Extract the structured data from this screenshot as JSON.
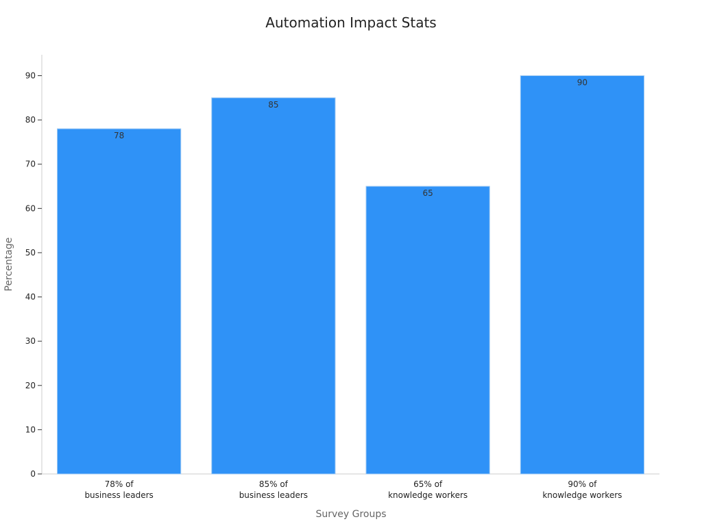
{
  "chart_data": {
    "type": "bar",
    "title": "Automation Impact Stats",
    "xlabel": "Survey Groups",
    "ylabel": "Percentage",
    "categories": [
      [
        "78% of",
        "business leaders"
      ],
      [
        "85% of",
        "business leaders"
      ],
      [
        "65% of",
        "knowledge workers"
      ],
      [
        "90% of",
        "knowledge workers"
      ]
    ],
    "values": [
      78,
      85,
      65,
      90
    ],
    "data_labels": [
      "78",
      "85",
      "65",
      "90"
    ],
    "y_ticks": [
      0,
      10,
      20,
      30,
      40,
      50,
      60,
      70,
      80,
      90
    ],
    "ylim": [
      0,
      95
    ],
    "grid": false,
    "legend": "none",
    "bar_color": "#2f92f7"
  }
}
